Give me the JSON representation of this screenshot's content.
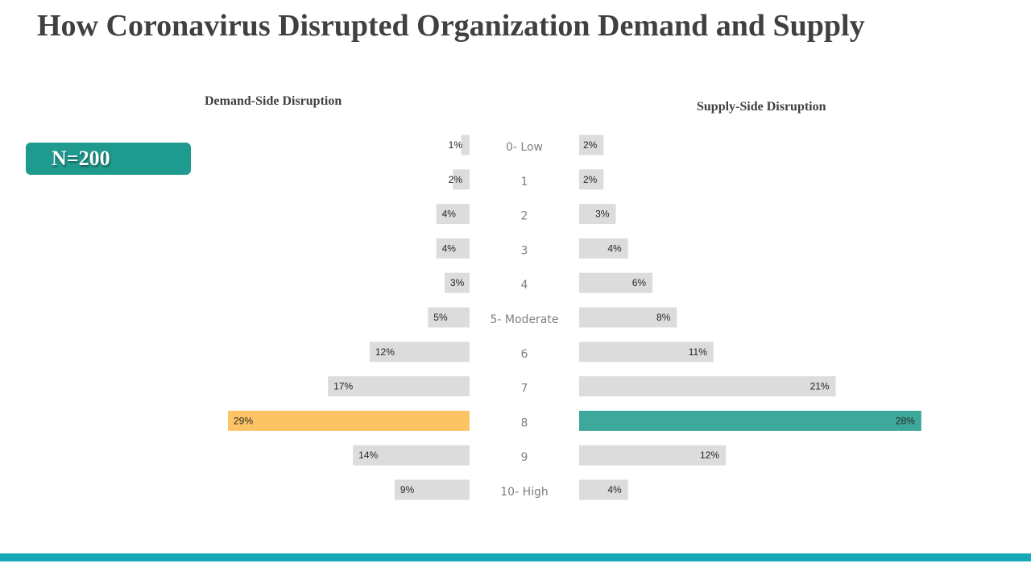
{
  "title": "How Coronavirus Disrupted Organization Demand and Supply",
  "badge": {
    "label": "N=200"
  },
  "chart_data": {
    "type": "bar",
    "orientation": "horizontal-butterfly",
    "categories": [
      "0- Low",
      "1",
      "2",
      "3",
      "4",
      "5- Moderate",
      "6",
      "7",
      "8",
      "9",
      "10- High"
    ],
    "series": [
      {
        "name": "Demand-Side Disruption",
        "side": "left",
        "values": [
          1,
          2,
          4,
          4,
          3,
          5,
          12,
          17,
          29,
          14,
          9
        ],
        "labels": [
          "1%",
          "2%",
          "4%",
          "4%",
          "3%",
          "5%",
          "12%",
          "17%",
          "29%",
          "14%",
          "9%"
        ],
        "highlight_index": 8,
        "highlight_color": "#fdc465"
      },
      {
        "name": "Supply-Side Disruption",
        "side": "right",
        "values": [
          2,
          2,
          3,
          4,
          6,
          8,
          11,
          21,
          28,
          12,
          4
        ],
        "labels": [
          "2%",
          "2%",
          "3%",
          "4%",
          "6%",
          "8%",
          "11%",
          "21%",
          "28%",
          "12%",
          "4%"
        ],
        "highlight_index": 8,
        "highlight_color": "#3ea89b"
      }
    ],
    "value_unit": "%",
    "bar_color": "#dcdcdc",
    "xlim": [
      0,
      29
    ]
  },
  "colors": {
    "badge": "#1f9a8e",
    "footer": "#17a9b8",
    "category_text": "#7f7f7f"
  }
}
